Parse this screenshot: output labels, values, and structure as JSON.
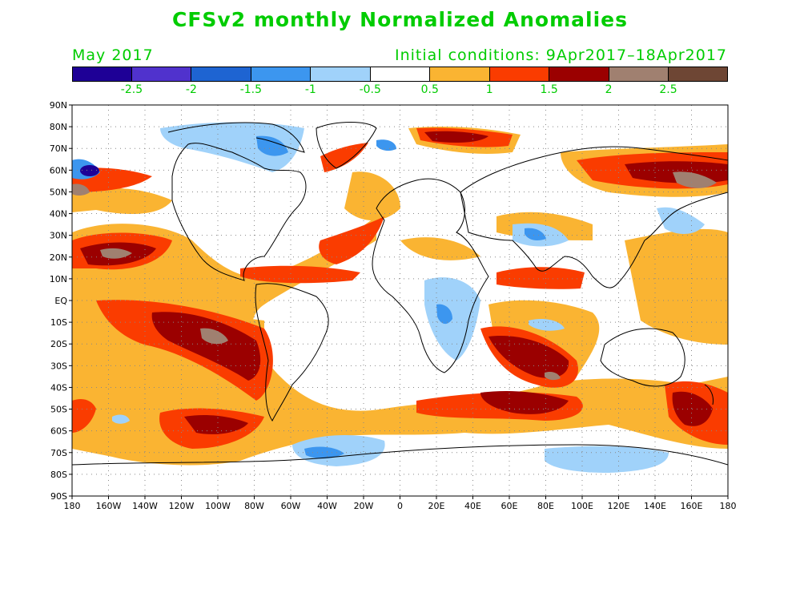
{
  "header": {
    "title": "CFSv2 monthly Normalized Anomalies",
    "month": "May 2017",
    "initial_conditions": "Initial conditions: 9Apr2017–18Apr2017",
    "text_color": "#00cc00"
  },
  "colorbar": {
    "colors": [
      "#1e0096",
      "#5032cd",
      "#1e64d2",
      "#3c96ef",
      "#a0d2fa",
      "#ffffff",
      "#fab432",
      "#fa3c00",
      "#9b0000",
      "#a08070",
      "#6e4634"
    ],
    "labels": [
      "-2.5",
      "-2",
      "-1.5",
      "-1",
      "-0.5",
      "0.5",
      "1",
      "1.5",
      "2",
      "2.5"
    ]
  },
  "axes": {
    "lat_labels": [
      "90N",
      "80N",
      "70N",
      "60N",
      "50N",
      "40N",
      "30N",
      "20N",
      "10N",
      "EQ",
      "10S",
      "20S",
      "30S",
      "40S",
      "50S",
      "60S",
      "70S",
      "80S",
      "90S"
    ],
    "lon_labels": [
      "180",
      "160W",
      "140W",
      "120W",
      "100W",
      "80W",
      "60W",
      "40W",
      "20W",
      "0",
      "20E",
      "40E",
      "60E",
      "80E",
      "100E",
      "120E",
      "140E",
      "160E",
      "180"
    ]
  }
}
